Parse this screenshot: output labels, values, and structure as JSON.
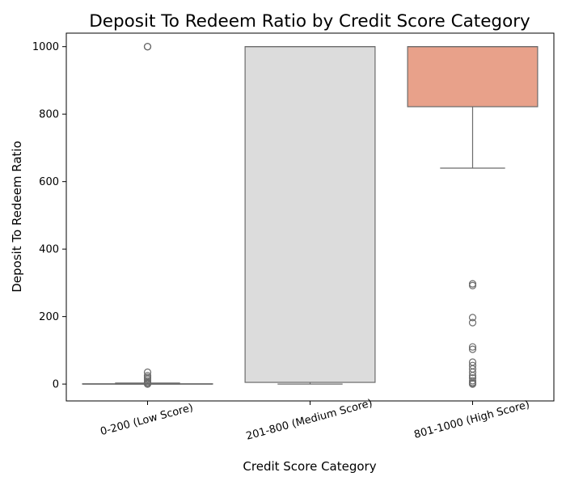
{
  "chart_data": {
    "type": "box",
    "title": "Deposit To Redeem Ratio by Credit Score Category",
    "xlabel": "Credit Score Category",
    "ylabel": "Deposit To Redeem Ratio",
    "ylim": [
      -50,
      1040
    ],
    "yticks": [
      0,
      200,
      400,
      600,
      800,
      1000
    ],
    "grid": false,
    "categories": [
      "0-200 (Low Score)",
      "201-800 (Medium Score)",
      "801-1000 (High Score)"
    ],
    "boxes": [
      {
        "category": "0-200 (Low Score)",
        "whislo": 0,
        "q1": 0,
        "med": 0,
        "q3": 1,
        "whishi": 3,
        "fliers": [
          1000,
          1000,
          1000,
          35,
          25,
          20,
          15,
          10,
          5,
          3,
          0
        ],
        "color": "#a9a9a9"
      },
      {
        "category": "201-800 (Medium Score)",
        "whislo": 0,
        "q1": 5,
        "med": 1000,
        "q3": 1000,
        "whishi": 1000,
        "fliers": [],
        "color": "#dcdcdc"
      },
      {
        "category": "801-1000 (High Score)",
        "whislo": 640,
        "q1": 822,
        "med": 1000,
        "q3": 1000,
        "whishi": 1000,
        "fliers": [
          297,
          292,
          197,
          182,
          110,
          103,
          65,
          55,
          45,
          35,
          25,
          18,
          10,
          5,
          2,
          0
        ],
        "color": "#e8a18a"
      }
    ],
    "edge_color": "#6b6b6b"
  }
}
